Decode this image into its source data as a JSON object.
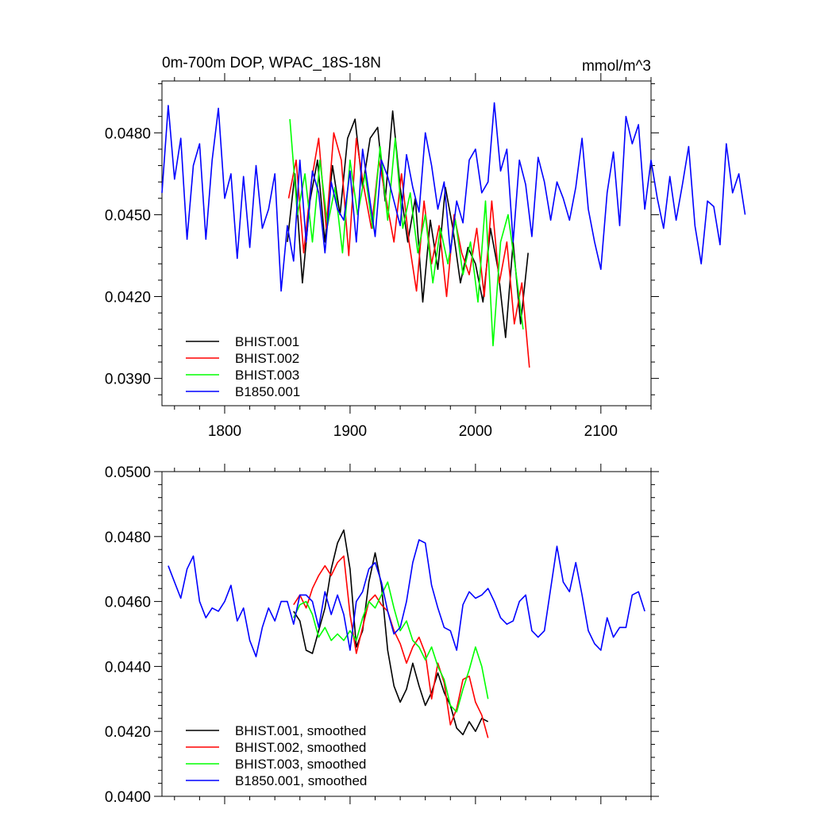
{
  "chart_data": [
    {
      "type": "line",
      "title": "0m-700m DOP, WPAC_18S-18N",
      "units": "mmol/m^3",
      "xlim": [
        1750,
        2140
      ],
      "ylim": [
        0.038,
        0.0499
      ],
      "xticks": [
        1800,
        1900,
        2000,
        2100
      ],
      "xtick_labels": [
        "1800",
        "1900",
        "2000",
        "2100"
      ],
      "yticks": [
        0.039,
        0.042,
        0.045,
        0.048
      ],
      "ytick_labels": [
        "0.0390",
        "0.0420",
        "0.0450",
        "0.0480"
      ],
      "legend_position": "bottom-left",
      "series": [
        {
          "name": "BHIST.001",
          "color": "#000000",
          "x_start": 1850,
          "x_step": 6,
          "values": [
            0.044,
            0.0465,
            0.0425,
            0.0455,
            0.047,
            0.044,
            0.0468,
            0.045,
            0.0478,
            0.0485,
            0.046,
            0.0478,
            0.0482,
            0.0455,
            0.0488,
            0.046,
            0.044,
            0.0456,
            0.0418,
            0.0448,
            0.043,
            0.046,
            0.0445,
            0.0425,
            0.0438,
            0.0432,
            0.0418,
            0.0445,
            0.043,
            0.0405,
            0.044,
            0.041,
            0.0436
          ]
        },
        {
          "name": "BHIST.002",
          "color": "#ff0000",
          "x_start": 1851,
          "x_step": 6,
          "values": [
            0.0456,
            0.047,
            0.0436,
            0.0462,
            0.0478,
            0.0445,
            0.048,
            0.047,
            0.0435,
            0.0478,
            0.046,
            0.0445,
            0.047,
            0.0455,
            0.044,
            0.0465,
            0.044,
            0.0422,
            0.0455,
            0.0432,
            0.0446,
            0.042,
            0.045,
            0.0436,
            0.0428,
            0.0445,
            0.042,
            0.0455,
            0.0425,
            0.044,
            0.041,
            0.0425,
            0.0394
          ]
        },
        {
          "name": "BHIST.003",
          "color": "#00ff00",
          "x_start": 1852,
          "x_step": 6,
          "values": [
            0.0485,
            0.045,
            0.0465,
            0.044,
            0.047,
            0.0446,
            0.046,
            0.0436,
            0.047,
            0.045,
            0.0465,
            0.0445,
            0.0475,
            0.0448,
            0.0478,
            0.0445,
            0.0458,
            0.0436,
            0.045,
            0.0425,
            0.0445,
            0.0432,
            0.0448,
            0.0428,
            0.044,
            0.0418,
            0.0455,
            0.0402,
            0.044,
            0.045,
            0.043,
            0.0408
          ]
        },
        {
          "name": "B1850.001",
          "color": "#0000ff",
          "x_start": 1750,
          "x_step": 5,
          "values": [
            0.0458,
            0.049,
            0.0463,
            0.0478,
            0.0441,
            0.0468,
            0.0476,
            0.0441,
            0.047,
            0.0489,
            0.0456,
            0.0465,
            0.0434,
            0.0464,
            0.0438,
            0.0468,
            0.0445,
            0.0452,
            0.0465,
            0.0422,
            0.0446,
            0.0433,
            0.047,
            0.044,
            0.0466,
            0.0458,
            0.0436,
            0.0462,
            0.0452,
            0.0448,
            0.0466,
            0.044,
            0.0474,
            0.0458,
            0.0442,
            0.047,
            0.0464,
            0.0455,
            0.0446,
            0.0472,
            0.046,
            0.0451,
            0.048,
            0.0468,
            0.0452,
            0.0462,
            0.0436,
            0.0455,
            0.0447,
            0.047,
            0.0474,
            0.0458,
            0.0462,
            0.0491,
            0.0466,
            0.0474,
            0.044,
            0.047,
            0.0461,
            0.0442,
            0.0471,
            0.0462,
            0.0448,
            0.0462,
            0.0456,
            0.0448,
            0.046,
            0.0478,
            0.0452,
            0.044,
            0.043,
            0.0458,
            0.0473,
            0.0446,
            0.0486,
            0.0476,
            0.0483,
            0.0452,
            0.047,
            0.0456,
            0.0445,
            0.0464,
            0.0448,
            0.0461,
            0.0475,
            0.0446,
            0.0432,
            0.0455,
            0.0453,
            0.0439,
            0.0476,
            0.0458,
            0.0465,
            0.045
          ]
        }
      ]
    },
    {
      "type": "line",
      "title": "",
      "xlim": [
        1750,
        2140
      ],
      "ylim": [
        0.04,
        0.05
      ],
      "yticks": [
        0.04,
        0.042,
        0.044,
        0.046,
        0.048,
        0.05
      ],
      "ytick_labels": [
        "0.0400",
        "0.0420",
        "0.0440",
        "0.0460",
        "0.0480",
        "0.0500"
      ],
      "legend_position": "bottom-left",
      "series": [
        {
          "name": "BHIST.001, smoothed",
          "color": "#000000",
          "x": [
            1855,
            1860,
            1865,
            1870,
            1875,
            1880,
            1885,
            1890,
            1895,
            1900,
            1905,
            1910,
            1915,
            1920,
            1925,
            1930,
            1935,
            1940,
            1945,
            1950,
            1955,
            1960,
            1965,
            1970,
            1975,
            1980,
            1985,
            1990,
            1995,
            2000,
            2005,
            2010
          ],
          "values": [
            0.0457,
            0.0454,
            0.0445,
            0.0444,
            0.0451,
            0.0458,
            0.047,
            0.0478,
            0.0482,
            0.047,
            0.0446,
            0.0451,
            0.0466,
            0.0475,
            0.0465,
            0.0445,
            0.0434,
            0.0429,
            0.0433,
            0.0441,
            0.0434,
            0.0428,
            0.0432,
            0.0438,
            0.0432,
            0.0428,
            0.0421,
            0.0419,
            0.0423,
            0.042,
            0.0424,
            0.0423
          ]
        },
        {
          "name": "BHIST.002, smoothed",
          "color": "#ff0000",
          "x": [
            1855,
            1860,
            1865,
            1870,
            1875,
            1880,
            1885,
            1890,
            1895,
            1900,
            1905,
            1910,
            1915,
            1920,
            1925,
            1930,
            1935,
            1940,
            1945,
            1950,
            1955,
            1960,
            1965,
            1970,
            1975,
            1980,
            1985,
            1990,
            1995,
            2000,
            2005,
            2010
          ],
          "values": [
            0.0459,
            0.0462,
            0.0458,
            0.0464,
            0.0468,
            0.0471,
            0.0468,
            0.0472,
            0.0474,
            0.0456,
            0.0444,
            0.0452,
            0.046,
            0.0462,
            0.0459,
            0.0457,
            0.0451,
            0.0447,
            0.0441,
            0.0446,
            0.0449,
            0.0444,
            0.043,
            0.0441,
            0.0435,
            0.0422,
            0.0427,
            0.0436,
            0.0437,
            0.0429,
            0.0425,
            0.0418
          ]
        },
        {
          "name": "BHIST.003, smoothed",
          "color": "#00ff00",
          "x": [
            1855,
            1860,
            1865,
            1870,
            1875,
            1880,
            1885,
            1890,
            1895,
            1900,
            1905,
            1910,
            1915,
            1920,
            1925,
            1930,
            1935,
            1940,
            1945,
            1950,
            1955,
            1960,
            1965,
            1970,
            1975,
            1980,
            1985,
            1990,
            1995,
            2000,
            2005,
            2010
          ],
          "values": [
            0.0455,
            0.0459,
            0.046,
            0.0456,
            0.0449,
            0.0452,
            0.0448,
            0.045,
            0.0448,
            0.0451,
            0.0448,
            0.0455,
            0.046,
            0.0458,
            0.0462,
            0.0466,
            0.0458,
            0.0451,
            0.0454,
            0.0448,
            0.0446,
            0.0442,
            0.0446,
            0.044,
            0.0436,
            0.0428,
            0.0426,
            0.0433,
            0.0439,
            0.0446,
            0.044,
            0.043
          ]
        },
        {
          "name": "B1850.001, smoothed",
          "color": "#0000ff",
          "x": [
            1755,
            1760,
            1765,
            1770,
            1775,
            1780,
            1785,
            1790,
            1795,
            1800,
            1805,
            1810,
            1815,
            1820,
            1825,
            1830,
            1835,
            1840,
            1845,
            1850,
            1855,
            1860,
            1865,
            1870,
            1875,
            1880,
            1885,
            1890,
            1895,
            1900,
            1905,
            1910,
            1915,
            1920,
            1925,
            1930,
            1935,
            1940,
            1945,
            1950,
            1955,
            1960,
            1965,
            1970,
            1975,
            1980,
            1985,
            1990,
            1995,
            2000,
            2005,
            2010,
            2015,
            2020,
            2025,
            2030,
            2035,
            2040,
            2045,
            2050,
            2055,
            2060,
            2065,
            2070,
            2075,
            2080,
            2085,
            2090,
            2095,
            2100,
            2105,
            2110,
            2115,
            2120,
            2125,
            2130,
            2135
          ],
          "values": [
            0.0471,
            0.0466,
            0.0461,
            0.047,
            0.0474,
            0.046,
            0.0455,
            0.0458,
            0.0457,
            0.046,
            0.0465,
            0.0454,
            0.0458,
            0.0448,
            0.0443,
            0.0452,
            0.0458,
            0.0454,
            0.046,
            0.046,
            0.0453,
            0.0462,
            0.0462,
            0.046,
            0.0452,
            0.0463,
            0.0456,
            0.0462,
            0.0456,
            0.0445,
            0.046,
            0.0463,
            0.047,
            0.0472,
            0.0466,
            0.0457,
            0.045,
            0.0452,
            0.046,
            0.0472,
            0.0479,
            0.0478,
            0.0465,
            0.0458,
            0.0452,
            0.0451,
            0.0445,
            0.0459,
            0.0463,
            0.0461,
            0.0462,
            0.0464,
            0.046,
            0.0455,
            0.0453,
            0.0454,
            0.046,
            0.0462,
            0.0451,
            0.0449,
            0.0451,
            0.0464,
            0.0477,
            0.0466,
            0.0463,
            0.0472,
            0.0462,
            0.0451,
            0.0447,
            0.0445,
            0.0455,
            0.0449,
            0.0452,
            0.0452,
            0.0462,
            0.0463,
            0.0457
          ]
        }
      ]
    }
  ]
}
